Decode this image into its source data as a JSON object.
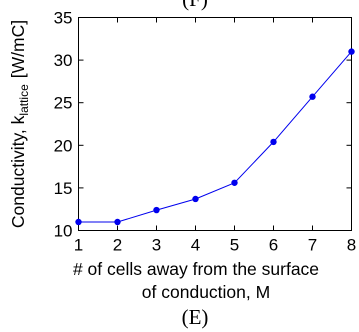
{
  "chart_data": {
    "type": "line",
    "caption_top": "(F)",
    "caption": "(E)",
    "ylabel_main": "Conductivity, k",
    "ylabel_sub": "lattice",
    "ylabel_unit": "[W/mC]",
    "xlabel_line1": "# of cells away from the surface",
    "xlabel_line2": "of conduction, M",
    "xlim": [
      1,
      8
    ],
    "ylim": [
      10,
      35
    ],
    "xticks": [
      "1",
      "2",
      "3",
      "4",
      "5",
      "6",
      "7",
      "8"
    ],
    "yticks": [
      "10",
      "15",
      "20",
      "25",
      "30",
      "35"
    ],
    "grid": false,
    "color": "#0000ee",
    "series": [
      {
        "x": [
          1,
          2,
          3,
          4,
          5,
          6,
          7,
          8
        ],
        "values": [
          11.0,
          11.0,
          12.4,
          13.7,
          15.6,
          20.4,
          25.7,
          31.0
        ]
      }
    ]
  }
}
